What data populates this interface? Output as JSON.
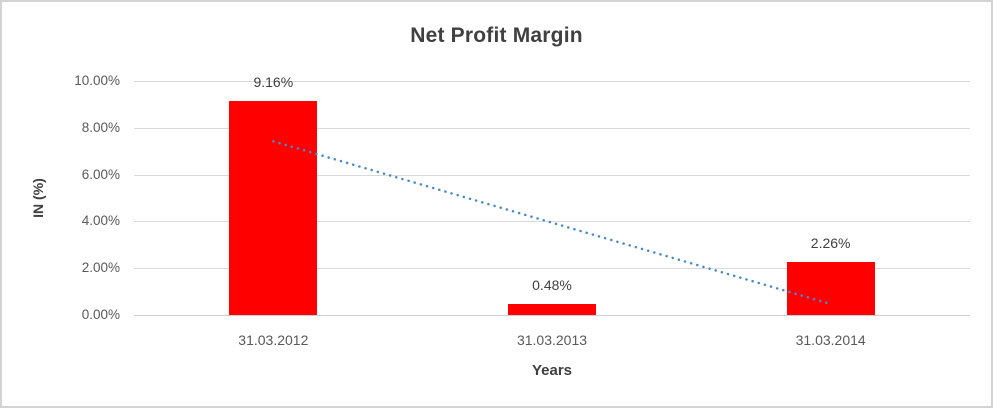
{
  "frame": {
    "background": "#ffffff",
    "border_color": "#d3d3d3"
  },
  "chart_data": {
    "type": "bar",
    "title": "Net Profit Margin",
    "xlabel": "Years",
    "ylabel": "IN (%)",
    "categories": [
      "31.03.2012",
      "31.03.2013",
      "31.03.2014"
    ],
    "values": [
      9.16,
      0.48,
      2.26
    ],
    "data_labels": [
      "9.16%",
      "0.48%",
      "2.26%"
    ],
    "ylim": [
      0,
      10
    ],
    "ytick_step": 2,
    "ytick_labels": [
      "0.00%",
      "2.00%",
      "4.00%",
      "6.00%",
      "8.00%",
      "10.00%"
    ],
    "grid": true,
    "legend": "none",
    "bar_color": "#ff0000",
    "gridline_color": "#d9d9d9",
    "trendline": {
      "style": "dotted",
      "color": "#4a89c8",
      "x": [
        1,
        3
      ],
      "y": [
        7.42,
        0.52
      ]
    }
  }
}
